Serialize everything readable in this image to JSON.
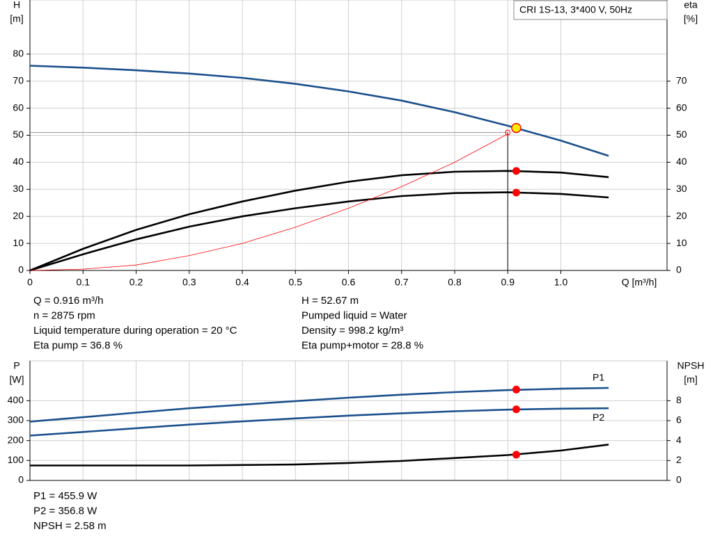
{
  "chart_data": [
    {
      "type": "line",
      "legend_box": "CRI 1S-13, 3*400 V, 50Hz",
      "ylabel": "H",
      "yunit": "[m]",
      "y2label": "eta",
      "y2unit": "[%]",
      "xlabel": "Q [m³/h]",
      "x": [
        0,
        0.1,
        0.2,
        0.3,
        0.4,
        0.5,
        0.6,
        0.7,
        0.8,
        0.9,
        1.0,
        1.09
      ],
      "xlim": [
        0,
        1.2
      ],
      "xticks": [
        0,
        0.1,
        0.2,
        0.3,
        0.4,
        0.5,
        0.6,
        0.7,
        0.8,
        0.9,
        {
          "value": 1,
          "label": "1.0"
        }
      ],
      "ylim": [
        0,
        100
      ],
      "yticks": [
        0,
        10,
        20,
        30,
        40,
        50,
        60,
        70,
        80
      ],
      "y2lim": [
        0,
        100
      ],
      "y2ticks": [
        0,
        10,
        20,
        30,
        40,
        50,
        60,
        70
      ],
      "grid": true,
      "series": [
        {
          "color": "#1a4f8b",
          "values": [
            75.7,
            75,
            74,
            72.8,
            71.2,
            69,
            66.2,
            62.8,
            58.5,
            53.5,
            48,
            42.4
          ]
        },
        {
          "color": "#000000",
          "axis": "y2",
          "values": [
            0,
            8,
            15,
            20.8,
            25.5,
            29.5,
            32.8,
            35.2,
            36.5,
            36.8,
            36.2,
            34.5
          ]
        },
        {
          "color": "#000000",
          "axis": "y2",
          "values": [
            0,
            6,
            11.5,
            16.2,
            20,
            23,
            25.5,
            27.5,
            28.6,
            28.9,
            28.3,
            27
          ]
        },
        {
          "color": "#ff0000",
          "values": [
            0,
            0.5,
            2,
            5.5,
            10,
            16,
            23,
            31,
            40,
            50.5,
            null,
            null
          ]
        }
      ],
      "duty_point": {
        "x": 0.916,
        "values": [
          52.67,
          36.8,
          28.8
        ],
        "axes": [
          "y",
          "y2",
          "y2"
        ],
        "colors": [
          "#ffee00",
          "#ff0000",
          "#ff0000"
        ]
      },
      "reference": {
        "x": 0.9,
        "y": 51
      },
      "info_left": [
        "Q = 0.916 m³/h",
        "n = 2875 rpm",
        "Liquid temperature during operation = 20 °C",
        "Eta pump = 36.8 %"
      ],
      "info_right": [
        "H = 52.67 m",
        "Pumped liquid = Water",
        "Density = 998.2 kg/m³",
        "Eta pump+motor = 28.8 %"
      ]
    },
    {
      "type": "line",
      "ylabel": "P",
      "yunit": "[W]",
      "y2label": "NPSH",
      "y2unit": "[m]",
      "x": [
        0,
        0.1,
        0.2,
        0.3,
        0.4,
        0.5,
        0.6,
        0.7,
        0.8,
        0.9,
        1.0,
        1.09
      ],
      "xlim": [
        0,
        1.2
      ],
      "xticks": [
        0,
        0.1,
        0.2,
        0.3,
        0.4,
        0.5,
        0.6,
        0.7,
        0.8,
        0.9,
        1
      ],
      "ylim": [
        0,
        600
      ],
      "yticks": [
        0,
        100,
        200,
        300,
        400
      ],
      "y2lim": [
        0,
        12
      ],
      "y2ticks": [
        0,
        2,
        4,
        6,
        8
      ],
      "grid": true,
      "series": [
        {
          "name": "P1",
          "color": "#1a4f8b",
          "values": [
            295,
            317,
            340,
            362,
            380,
            398,
            415,
            430,
            443,
            453,
            460,
            464
          ]
        },
        {
          "name": "P2",
          "color": "#1a4f8b",
          "values": [
            225,
            243,
            262,
            280,
            296,
            311,
            325,
            337,
            347,
            355,
            360,
            362
          ]
        },
        {
          "color": "#000000",
          "axis": "y2",
          "values": [
            1.5,
            1.5,
            1.5,
            1.5,
            1.55,
            1.6,
            1.75,
            1.95,
            2.25,
            2.55,
            3.0,
            3.6
          ]
        }
      ],
      "duty_point": {
        "x": 0.916,
        "values": [
          455.9,
          356.8,
          2.58
        ],
        "axes": [
          "y",
          "y",
          "y2"
        ],
        "colors": [
          "#ff0000",
          "#ff0000",
          "#ff0000"
        ]
      },
      "info_left": [
        "P1 = 455.9 W",
        "P2 = 356.8 W",
        "NPSH = 2.58 m"
      ]
    }
  ]
}
